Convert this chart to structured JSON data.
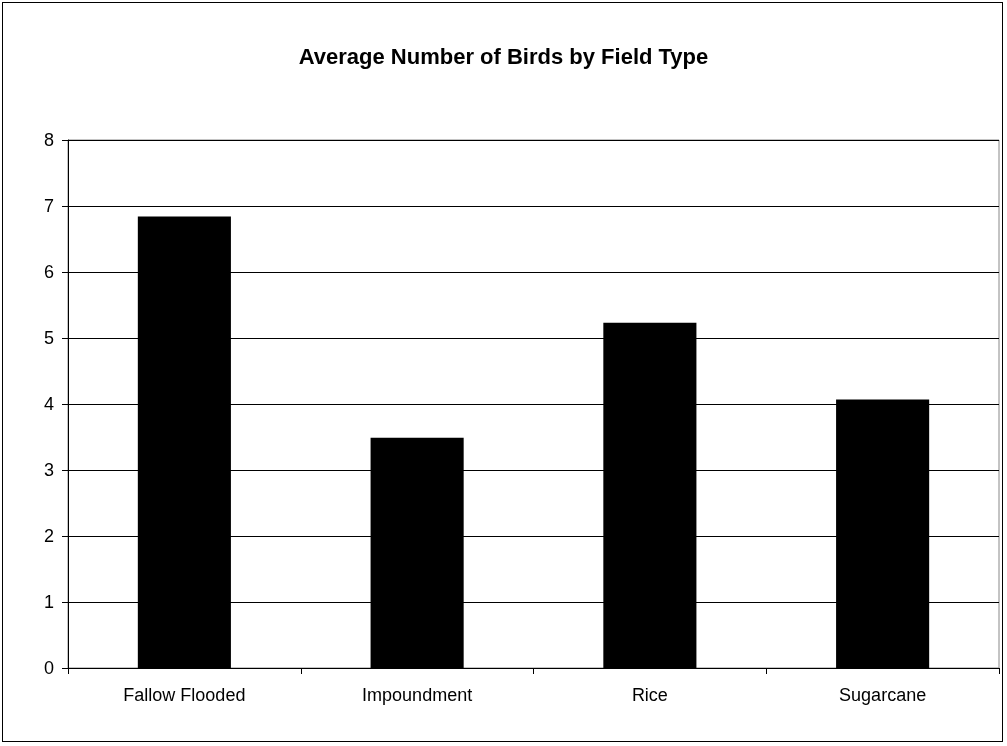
{
  "chart_data": {
    "type": "bar",
    "title": "Average Number of Birds by Field Type",
    "categories": [
      "Fallow Flooded",
      "Impoundment",
      "Rice",
      "Sugarcane"
    ],
    "values": [
      6.84,
      3.49,
      5.23,
      4.07
    ],
    "color": "#000000",
    "ylim": [
      0,
      8
    ],
    "yticks": [
      0,
      1,
      2,
      3,
      4,
      5,
      6,
      7,
      8
    ],
    "grid": "y"
  }
}
